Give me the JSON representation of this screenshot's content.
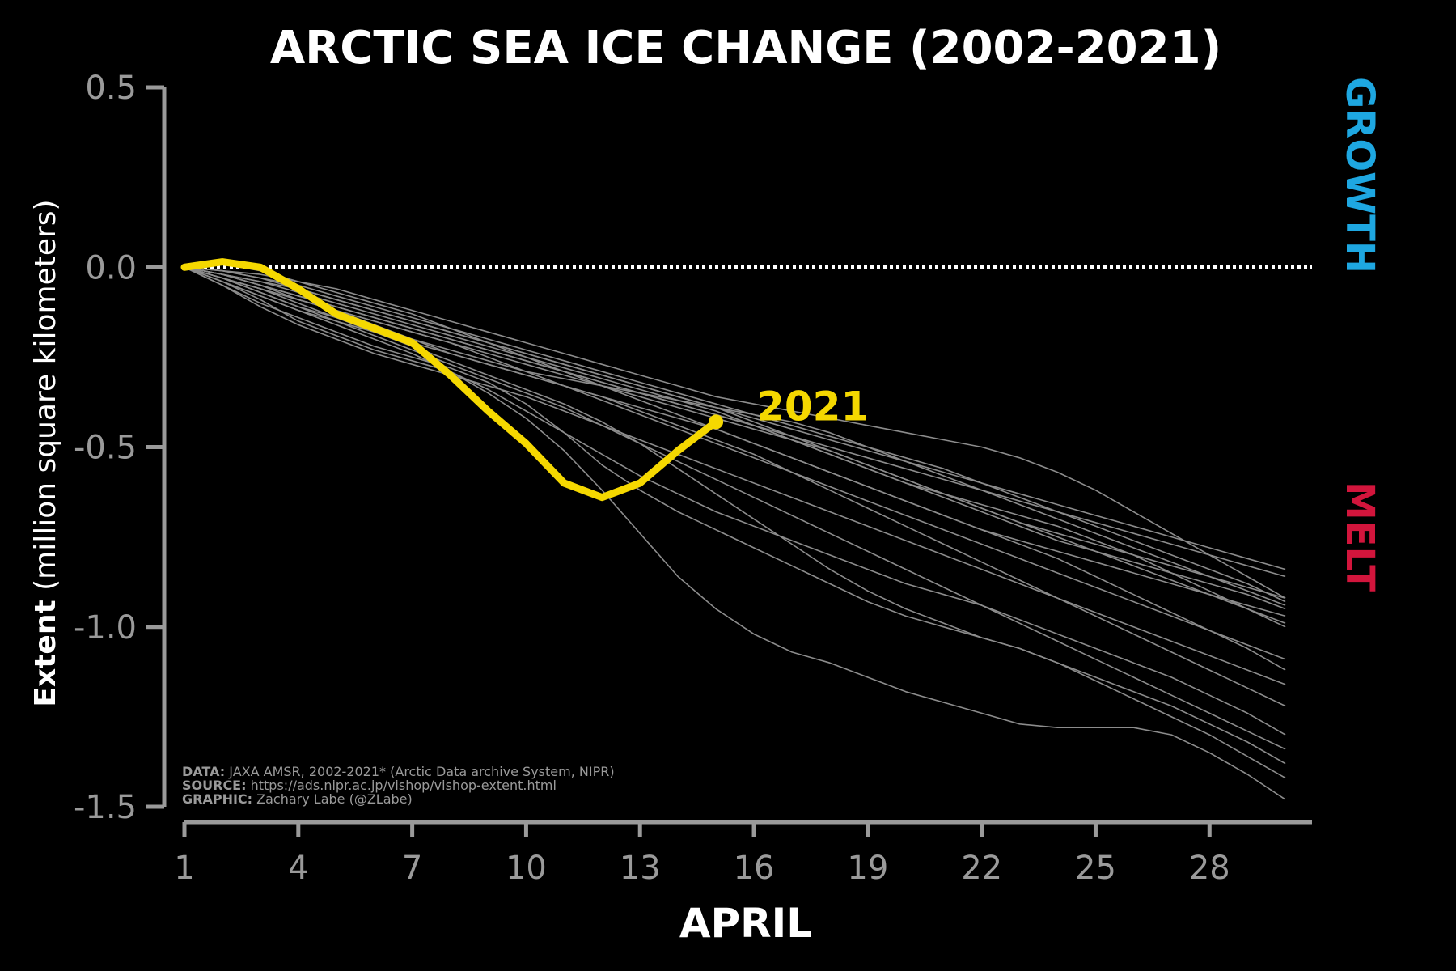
{
  "chart_data": {
    "type": "line",
    "title": "ARCTIC SEA ICE CHANGE (2002-2021)",
    "xlabel": "APRIL",
    "ylabel_bold": "Extent",
    "ylabel_rest": "(million square kilometers)",
    "xlim": [
      1,
      30.7
    ],
    "ylim": [
      -1.5,
      0.5
    ],
    "x_ticks": [
      1,
      4,
      7,
      10,
      13,
      16,
      19,
      22,
      25,
      28
    ],
    "y_ticks": [
      -1.5,
      -1.0,
      -0.5,
      0.0,
      0.5
    ],
    "x_tick_labels": [
      "1",
      "4",
      "7",
      "10",
      "13",
      "16",
      "19",
      "22",
      "25",
      "28"
    ],
    "y_tick_labels": [
      "-1.5",
      "-1.0",
      "-0.5",
      "0.0",
      "0.5"
    ],
    "grid": false,
    "reference_line": {
      "y": 0.0,
      "style": "dotted",
      "color": "#ffffff"
    },
    "side_labels": {
      "growth": {
        "text": "GROWTH",
        "color": "#1ea7e1"
      },
      "melt": {
        "text": "MELT",
        "color": "#d2153c"
      }
    },
    "highlight_color": "#f5d800",
    "background_series_color": "#8c8c8c",
    "highlight": {
      "name": "2021",
      "x": [
        1,
        2,
        3,
        4,
        5,
        6,
        7,
        8,
        9,
        10,
        11,
        12,
        13,
        14,
        15
      ],
      "y": [
        0.0,
        0.015,
        0.0,
        -0.06,
        -0.13,
        -0.17,
        -0.21,
        -0.3,
        -0.4,
        -0.49,
        -0.6,
        -0.64,
        -0.6,
        -0.51,
        -0.43
      ]
    },
    "background_series": [
      {
        "y": [
          0,
          -0.04,
          -0.09,
          -0.15,
          -0.19,
          -0.23,
          -0.26,
          -0.29,
          -0.34,
          -0.4,
          -0.46,
          -0.52,
          -0.58,
          -0.63,
          -0.68,
          -0.72,
          -0.76,
          -0.8,
          -0.84,
          -0.88,
          -0.91,
          -0.94,
          -0.98,
          -1.02,
          -1.06,
          -1.1,
          -1.14,
          -1.19,
          -1.24,
          -1.3
        ]
      },
      {
        "y": [
          0,
          -0.02,
          -0.05,
          -0.09,
          -0.12,
          -0.16,
          -0.2,
          -0.24,
          -0.27,
          -0.3,
          -0.33,
          -0.36,
          -0.39,
          -0.42,
          -0.45,
          -0.49,
          -0.53,
          -0.57,
          -0.61,
          -0.65,
          -0.69,
          -0.73,
          -0.77,
          -0.81,
          -0.86,
          -0.91,
          -0.96,
          -1.01,
          -1.06,
          -1.12
        ]
      },
      {
        "y": [
          0,
          -0.03,
          -0.07,
          -0.11,
          -0.14,
          -0.17,
          -0.2,
          -0.23,
          -0.26,
          -0.29,
          -0.31,
          -0.33,
          -0.35,
          -0.37,
          -0.39,
          -0.41,
          -0.43,
          -0.46,
          -0.5,
          -0.54,
          -0.58,
          -0.62,
          -0.66,
          -0.7,
          -0.74,
          -0.78,
          -0.82,
          -0.86,
          -0.9,
          -0.94
        ]
      },
      {
        "y": [
          0,
          -0.05,
          -0.1,
          -0.14,
          -0.18,
          -0.22,
          -0.25,
          -0.28,
          -0.32,
          -0.38,
          -0.46,
          -0.55,
          -0.62,
          -0.68,
          -0.73,
          -0.78,
          -0.83,
          -0.88,
          -0.93,
          -0.97,
          -1.0,
          -1.03,
          -1.06,
          -1.1,
          -1.15,
          -1.2,
          -1.25,
          -1.3,
          -1.36,
          -1.42
        ]
      },
      {
        "y": [
          0,
          -0.01,
          -0.03,
          -0.06,
          -0.09,
          -0.12,
          -0.15,
          -0.18,
          -0.21,
          -0.24,
          -0.27,
          -0.3,
          -0.33,
          -0.36,
          -0.39,
          -0.43,
          -0.47,
          -0.51,
          -0.55,
          -0.59,
          -0.63,
          -0.67,
          -0.71,
          -0.74,
          -0.77,
          -0.8,
          -0.83,
          -0.86,
          -0.89,
          -0.92
        ]
      },
      {
        "y": [
          0,
          -0.04,
          -0.08,
          -0.12,
          -0.16,
          -0.2,
          -0.24,
          -0.29,
          -0.35,
          -0.42,
          -0.51,
          -0.62,
          -0.74,
          -0.86,
          -0.95,
          -1.02,
          -1.07,
          -1.1,
          -1.14,
          -1.18,
          -1.21,
          -1.24,
          -1.27,
          -1.28,
          -1.28,
          -1.28,
          -1.3,
          -1.35,
          -1.41,
          -1.48
        ]
      },
      {
        "y": [
          0,
          -0.02,
          -0.04,
          -0.07,
          -0.1,
          -0.13,
          -0.16,
          -0.19,
          -0.22,
          -0.25,
          -0.28,
          -0.31,
          -0.34,
          -0.37,
          -0.4,
          -0.44,
          -0.48,
          -0.52,
          -0.56,
          -0.6,
          -0.63,
          -0.66,
          -0.69,
          -0.72,
          -0.76,
          -0.8,
          -0.85,
          -0.9,
          -0.95,
          -1.0
        ]
      },
      {
        "y": [
          0,
          -0.03,
          -0.06,
          -0.1,
          -0.14,
          -0.18,
          -0.22,
          -0.26,
          -0.3,
          -0.34,
          -0.38,
          -0.43,
          -0.49,
          -0.56,
          -0.63,
          -0.7,
          -0.77,
          -0.84,
          -0.9,
          -0.95,
          -0.99,
          -1.03,
          -1.06,
          -1.1,
          -1.14,
          -1.18,
          -1.22,
          -1.27,
          -1.32,
          -1.38
        ]
      },
      {
        "y": [
          0,
          -0.02,
          -0.05,
          -0.08,
          -0.11,
          -0.14,
          -0.17,
          -0.2,
          -0.23,
          -0.26,
          -0.29,
          -0.32,
          -0.35,
          -0.38,
          -0.41,
          -0.44,
          -0.47,
          -0.5,
          -0.53,
          -0.56,
          -0.59,
          -0.62,
          -0.65,
          -0.68,
          -0.71,
          -0.74,
          -0.77,
          -0.8,
          -0.83,
          -0.86
        ]
      },
      {
        "y": [
          0,
          -0.01,
          -0.02,
          -0.04,
          -0.06,
          -0.09,
          -0.12,
          -0.15,
          -0.18,
          -0.21,
          -0.24,
          -0.27,
          -0.3,
          -0.33,
          -0.36,
          -0.38,
          -0.4,
          -0.42,
          -0.44,
          -0.46,
          -0.48,
          -0.5,
          -0.53,
          -0.57,
          -0.62,
          -0.68,
          -0.74,
          -0.8,
          -0.86,
          -0.92
        ]
      },
      {
        "y": [
          0,
          -0.03,
          -0.06,
          -0.09,
          -0.12,
          -0.15,
          -0.18,
          -0.21,
          -0.25,
          -0.29,
          -0.33,
          -0.37,
          -0.41,
          -0.45,
          -0.49,
          -0.53,
          -0.57,
          -0.61,
          -0.65,
          -0.69,
          -0.73,
          -0.77,
          -0.81,
          -0.85,
          -0.89,
          -0.93,
          -0.97,
          -1.01,
          -1.05,
          -1.09
        ]
      },
      {
        "y": [
          0,
          -0.05,
          -0.11,
          -0.16,
          -0.2,
          -0.24,
          -0.27,
          -0.3,
          -0.33,
          -0.36,
          -0.4,
          -0.44,
          -0.48,
          -0.52,
          -0.56,
          -0.6,
          -0.64,
          -0.68,
          -0.72,
          -0.76,
          -0.8,
          -0.84,
          -0.88,
          -0.92,
          -0.96,
          -1.0,
          -1.04,
          -1.08,
          -1.12,
          -1.16
        ]
      },
      {
        "y": [
          0,
          -0.02,
          -0.04,
          -0.06,
          -0.09,
          -0.12,
          -0.15,
          -0.18,
          -0.21,
          -0.24,
          -0.27,
          -0.3,
          -0.33,
          -0.36,
          -0.39,
          -0.42,
          -0.45,
          -0.48,
          -0.51,
          -0.54,
          -0.57,
          -0.6,
          -0.63,
          -0.66,
          -0.69,
          -0.72,
          -0.75,
          -0.78,
          -0.81,
          -0.84
        ]
      },
      {
        "y": [
          0,
          -0.04,
          -0.08,
          -0.12,
          -0.15,
          -0.18,
          -0.21,
          -0.24,
          -0.27,
          -0.3,
          -0.33,
          -0.36,
          -0.4,
          -0.44,
          -0.48,
          -0.52,
          -0.57,
          -0.62,
          -0.67,
          -0.72,
          -0.77,
          -0.82,
          -0.87,
          -0.92,
          -0.97,
          -1.02,
          -1.07,
          -1.12,
          -1.17,
          -1.22
        ]
      },
      {
        "y": [
          0,
          -0.01,
          -0.03,
          -0.05,
          -0.08,
          -0.11,
          -0.14,
          -0.17,
          -0.2,
          -0.23,
          -0.26,
          -0.29,
          -0.32,
          -0.35,
          -0.38,
          -0.41,
          -0.44,
          -0.47,
          -0.5,
          -0.53,
          -0.56,
          -0.6,
          -0.64,
          -0.68,
          -0.72,
          -0.76,
          -0.8,
          -0.84,
          -0.88,
          -0.93
        ]
      },
      {
        "y": [
          0,
          -0.03,
          -0.07,
          -0.11,
          -0.15,
          -0.19,
          -0.23,
          -0.27,
          -0.31,
          -0.35,
          -0.39,
          -0.44,
          -0.49,
          -0.54,
          -0.59,
          -0.64,
          -0.69,
          -0.74,
          -0.79,
          -0.84,
          -0.89,
          -0.94,
          -0.99,
          -1.04,
          -1.09,
          -1.14,
          -1.19,
          -1.24,
          -1.29,
          -1.34
        ]
      },
      {
        "y": [
          0,
          0.01,
          -0.01,
          -0.04,
          -0.07,
          -0.1,
          -0.13,
          -0.17,
          -0.21,
          -0.25,
          -0.29,
          -0.33,
          -0.37,
          -0.41,
          -0.45,
          -0.49,
          -0.53,
          -0.57,
          -0.61,
          -0.65,
          -0.69,
          -0.73,
          -0.76,
          -0.79,
          -0.82,
          -0.85,
          -0.88,
          -0.91,
          -0.94,
          -0.97
        ]
      },
      {
        "y": [
          0,
          -0.02,
          -0.05,
          -0.08,
          -0.11,
          -0.14,
          -0.17,
          -0.2,
          -0.23,
          -0.26,
          -0.29,
          -0.32,
          -0.35,
          -0.38,
          -0.41,
          -0.44,
          -0.48,
          -0.52,
          -0.56,
          -0.6,
          -0.64,
          -0.68,
          -0.72,
          -0.76,
          -0.79,
          -0.82,
          -0.85,
          -0.88,
          -0.91,
          -0.95
        ]
      },
      {
        "y": [
          0,
          -0.03,
          -0.06,
          -0.09,
          -0.12,
          -0.15,
          -0.18,
          -0.21,
          -0.24,
          -0.27,
          -0.3,
          -0.33,
          -0.36,
          -0.39,
          -0.42,
          -0.45,
          -0.48,
          -0.51,
          -0.55,
          -0.59,
          -0.63,
          -0.67,
          -0.71,
          -0.75,
          -0.79,
          -0.83,
          -0.87,
          -0.91,
          -0.95,
          -0.99
        ]
      }
    ],
    "credits": [
      {
        "label": "DATA:",
        "text": " JAXA AMSR, 2002-2021* (Arctic Data archive System, NIPR)"
      },
      {
        "label": "SOURCE:",
        "text": " https://ads.nipr.ac.jp/vishop/vishop-extent.html"
      },
      {
        "label": "GRAPHIC:",
        "text": " Zachary Labe (@ZLabe)"
      }
    ]
  }
}
